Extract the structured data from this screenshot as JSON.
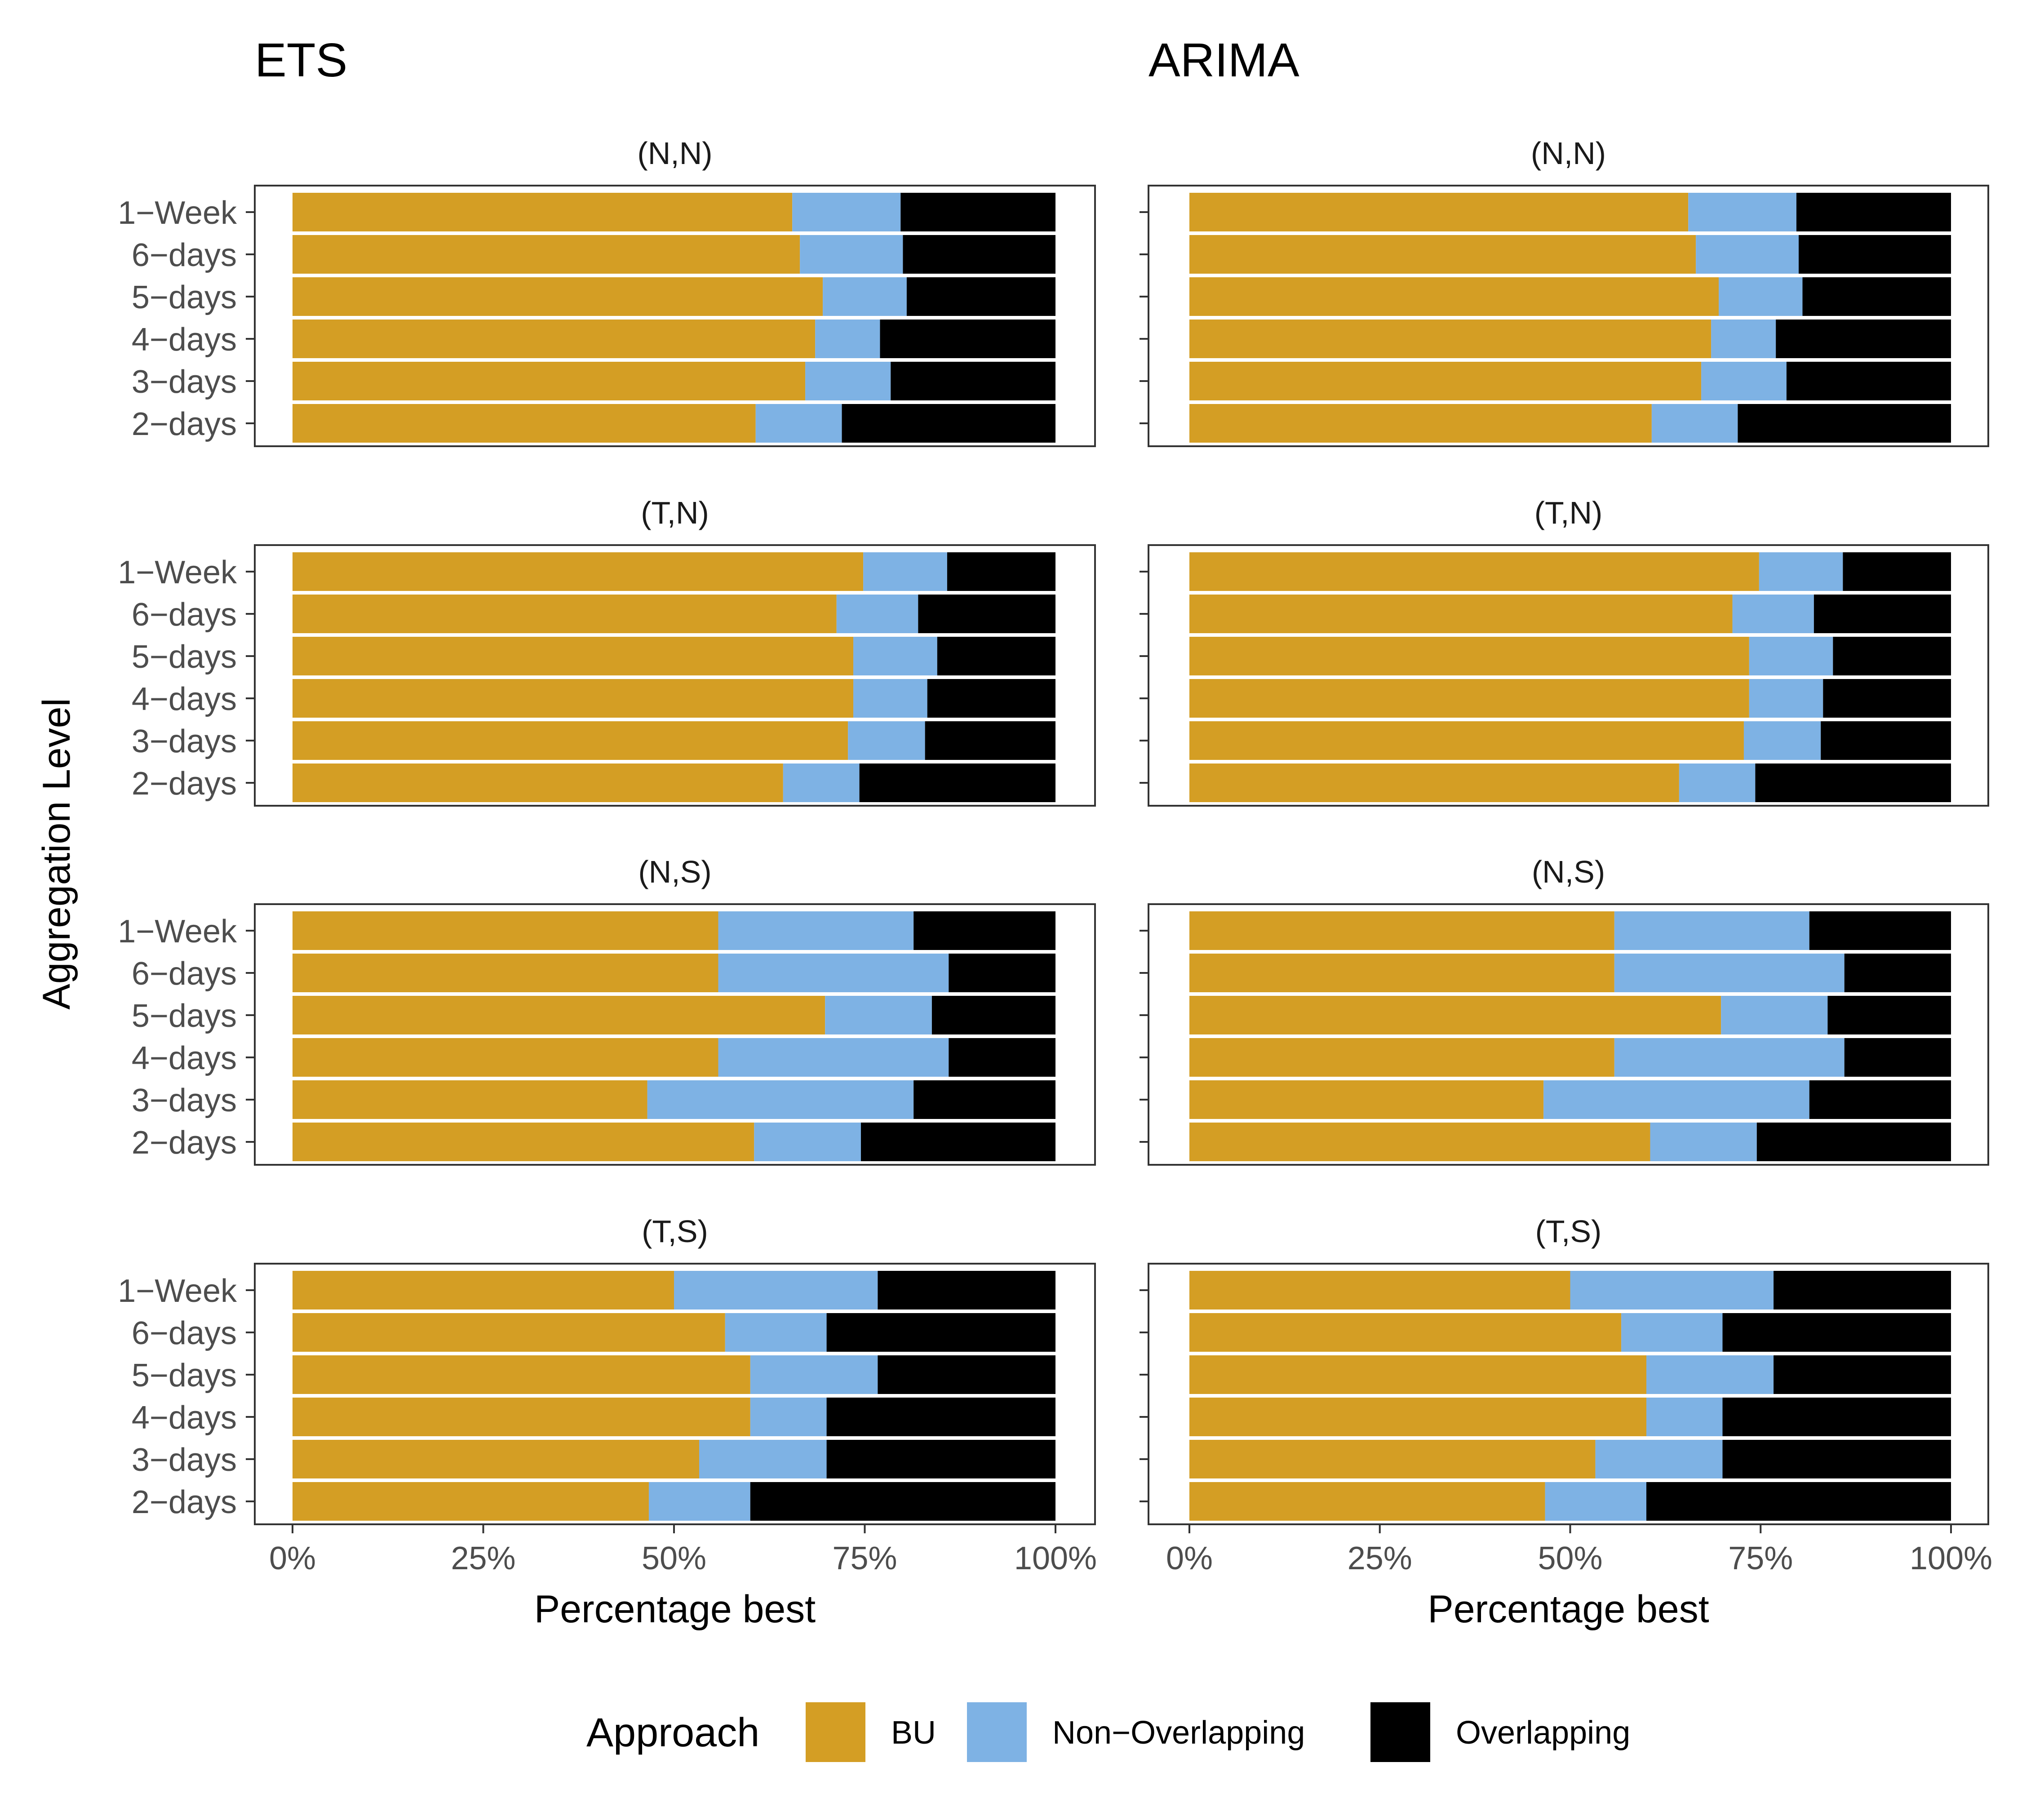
{
  "colors": {
    "BU": "#D49E24",
    "Non-Overlapping": "#7EB2E4",
    "Overlapping": "#000000",
    "panel_border": "#333333",
    "tick_text": "#4D4D4D",
    "separator": "#FFFFFF"
  },
  "chart_data": {
    "type": "bar",
    "orientation": "horizontal",
    "stacked": true,
    "ylabel": "Aggregation Level",
    "xlabel": "Percentage best",
    "xlim": [
      0,
      1
    ],
    "x_ticks": [
      "0%",
      "25%",
      "50%",
      "75%",
      "100%"
    ],
    "categories": [
      "1−Week",
      "6−days",
      "5−days",
      "4−days",
      "3−days",
      "2−days"
    ],
    "legend": {
      "title": "Approach",
      "position": "bottom",
      "entries": [
        "BU",
        "Non−Overlapping",
        "Overlapping"
      ]
    },
    "grid": false,
    "columns": [
      {
        "title": "ETS",
        "panels": [
          {
            "title": "(N,N)",
            "series": [
              {
                "name": "BU",
                "values": [
                  0.655,
                  0.665,
                  0.695,
                  0.685,
                  0.672,
                  0.607
                ]
              },
              {
                "name": "Non−Overlapping",
                "values": [
                  0.142,
                  0.135,
                  0.11,
                  0.085,
                  0.112,
                  0.113
                ]
              },
              {
                "name": "Overlapping",
                "values": [
                  0.203,
                  0.2,
                  0.195,
                  0.23,
                  0.216,
                  0.28
                ]
              }
            ]
          },
          {
            "title": "(T,N)",
            "series": [
              {
                "name": "BU",
                "values": [
                  0.748,
                  0.713,
                  0.735,
                  0.735,
                  0.728,
                  0.643
                ]
              },
              {
                "name": "Non−Overlapping",
                "values": [
                  0.11,
                  0.107,
                  0.11,
                  0.097,
                  0.101,
                  0.1
                ]
              },
              {
                "name": "Overlapping",
                "values": [
                  0.142,
                  0.18,
                  0.155,
                  0.168,
                  0.171,
                  0.257
                ]
              }
            ]
          },
          {
            "title": "(N,S)",
            "series": [
              {
                "name": "BU",
                "values": [
                  0.558,
                  0.558,
                  0.698,
                  0.558,
                  0.465,
                  0.605
                ]
              },
              {
                "name": "Non−Overlapping",
                "values": [
                  0.256,
                  0.302,
                  0.14,
                  0.302,
                  0.349,
                  0.14
                ]
              },
              {
                "name": "Overlapping",
                "values": [
                  0.186,
                  0.14,
                  0.162,
                  0.14,
                  0.186,
                  0.255
                ]
              }
            ]
          },
          {
            "title": "(T,S)",
            "series": [
              {
                "name": "BU",
                "values": [
                  0.5,
                  0.567,
                  0.6,
                  0.6,
                  0.533,
                  0.467
                ]
              },
              {
                "name": "Non−Overlapping",
                "values": [
                  0.267,
                  0.133,
                  0.167,
                  0.1,
                  0.167,
                  0.133
                ]
              },
              {
                "name": "Overlapping",
                "values": [
                  0.233,
                  0.3,
                  0.233,
                  0.3,
                  0.3,
                  0.4
                ]
              }
            ]
          }
        ]
      },
      {
        "title": "ARIMA",
        "panels": [
          {
            "title": "(N,N)",
            "series": [
              {
                "name": "BU",
                "values": [
                  0.655,
                  0.665,
                  0.695,
                  0.685,
                  0.672,
                  0.607
                ]
              },
              {
                "name": "Non−Overlapping",
                "values": [
                  0.142,
                  0.135,
                  0.11,
                  0.085,
                  0.112,
                  0.113
                ]
              },
              {
                "name": "Overlapping",
                "values": [
                  0.203,
                  0.2,
                  0.195,
                  0.23,
                  0.216,
                  0.28
                ]
              }
            ]
          },
          {
            "title": "(T,N)",
            "series": [
              {
                "name": "BU",
                "values": [
                  0.748,
                  0.713,
                  0.735,
                  0.735,
                  0.728,
                  0.643
                ]
              },
              {
                "name": "Non−Overlapping",
                "values": [
                  0.11,
                  0.107,
                  0.11,
                  0.097,
                  0.101,
                  0.1
                ]
              },
              {
                "name": "Overlapping",
                "values": [
                  0.142,
                  0.18,
                  0.155,
                  0.168,
                  0.171,
                  0.257
                ]
              }
            ]
          },
          {
            "title": "(N,S)",
            "series": [
              {
                "name": "BU",
                "values": [
                  0.558,
                  0.558,
                  0.698,
                  0.558,
                  0.465,
                  0.605
                ]
              },
              {
                "name": "Non−Overlapping",
                "values": [
                  0.256,
                  0.302,
                  0.14,
                  0.302,
                  0.349,
                  0.14
                ]
              },
              {
                "name": "Overlapping",
                "values": [
                  0.186,
                  0.14,
                  0.162,
                  0.14,
                  0.186,
                  0.255
                ]
              }
            ]
          },
          {
            "title": "(T,S)",
            "series": [
              {
                "name": "BU",
                "values": [
                  0.5,
                  0.567,
                  0.6,
                  0.6,
                  0.533,
                  0.467
                ]
              },
              {
                "name": "Non−Overlapping",
                "values": [
                  0.267,
                  0.133,
                  0.167,
                  0.1,
                  0.167,
                  0.133
                ]
              },
              {
                "name": "Overlapping",
                "values": [
                  0.233,
                  0.3,
                  0.233,
                  0.3,
                  0.3,
                  0.4
                ]
              }
            ]
          }
        ]
      }
    ]
  }
}
